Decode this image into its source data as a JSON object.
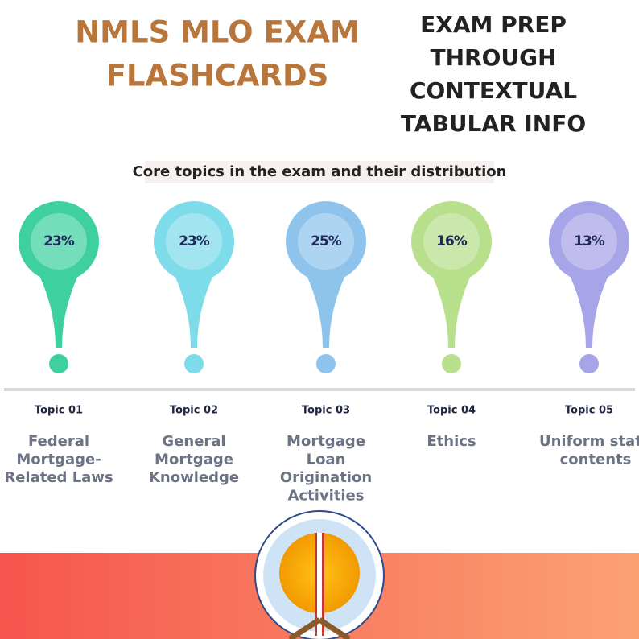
{
  "header": {
    "title": [
      "NMLS MLO EXAM",
      "FLASHCARDS"
    ],
    "subtitle": [
      "EXAM PREP",
      "THROUGH",
      "CONTEXTUAL",
      "TABULAR INFO"
    ]
  },
  "section": {
    "heading": "Core topics in the exam and their distribution"
  },
  "topics": [
    {
      "share": "23%",
      "label": "Topic 01",
      "title": [
        "Federal",
        "Mortgage-",
        "Related Laws"
      ]
    },
    {
      "share": "23%",
      "label": "Topic 02",
      "title": [
        "General",
        "Mortgage",
        "Knowledge"
      ]
    },
    {
      "share": "25%",
      "label": "Topic 03",
      "title": [
        "Mortgage",
        "Loan",
        "Origination",
        "Activities"
      ]
    },
    {
      "share": "16%",
      "label": "Topic 04",
      "title": [
        "Ethics"
      ]
    },
    {
      "share": "13%",
      "label": "Topic 05",
      "title": [
        "Uniform state",
        "contents"
      ]
    }
  ]
}
